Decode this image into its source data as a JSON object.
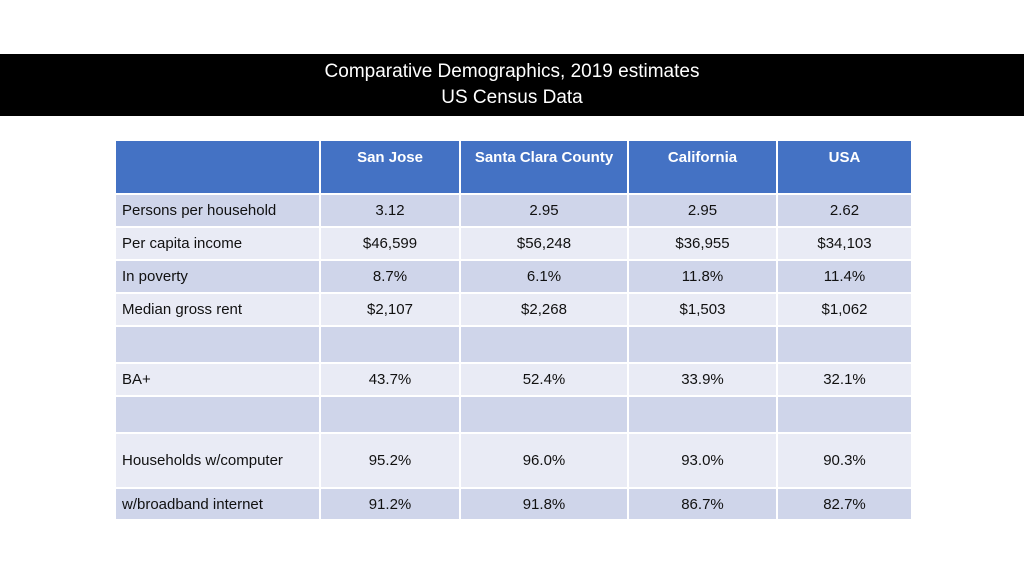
{
  "title": {
    "line1": "Comparative Demographics, 2019 estimates",
    "line2": "US Census Data"
  },
  "table": {
    "columns": [
      "",
      "San Jose",
      "Santa Clara County",
      "California",
      "USA"
    ],
    "rows": [
      {
        "label": "Persons per household",
        "values": [
          "3.12",
          "2.95",
          "2.95",
          "2.62"
        ]
      },
      {
        "label": "Per capita income",
        "values": [
          "$46,599",
          "$56,248",
          "$36,955",
          "$34,103"
        ]
      },
      {
        "label": "In poverty",
        "values": [
          "8.7%",
          "6.1%",
          "11.8%",
          "11.4%"
        ]
      },
      {
        "label": "Median gross rent",
        "values": [
          "$2,107",
          "$2,268",
          "$1,503",
          "$1,062"
        ]
      },
      {
        "label": "",
        "values": [
          "",
          "",
          "",
          ""
        ]
      },
      {
        "label": "BA+",
        "values": [
          "43.7%",
          "52.4%",
          "33.9%",
          "32.1%"
        ]
      },
      {
        "label": "",
        "values": [
          "",
          "",
          "",
          ""
        ]
      },
      {
        "label": "Households w/computer",
        "values": [
          "95.2%",
          "96.0%",
          "93.0%",
          "90.3%"
        ]
      },
      {
        "label": "w/broadband internet",
        "values": [
          "91.2%",
          "91.8%",
          "86.7%",
          "82.7%"
        ]
      }
    ]
  },
  "colors": {
    "header_bg": "#4472c4",
    "row_dark": "#cfd5ea",
    "row_light": "#e9ebf5",
    "title_bar": "#000000"
  }
}
